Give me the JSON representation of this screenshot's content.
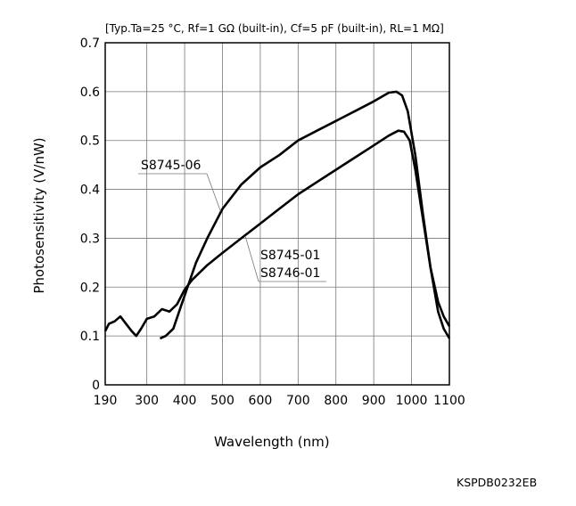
{
  "conditions_text": "[Typ.Ta=25 °C, Rf=1 GΩ (built-in), Cf=5 pF (built-in), RL=1 MΩ]",
  "document_code": "KSPDB0232EB",
  "chart_data": {
    "type": "line",
    "title": "",
    "xlabel": "Wavelength (nm)",
    "ylabel": "Photosensitivity (V/nW)",
    "xlim": [
      190,
      1100
    ],
    "ylim": [
      0,
      0.7
    ],
    "x_ticks": [
      190,
      300,
      400,
      500,
      600,
      700,
      800,
      900,
      1000,
      1100
    ],
    "y_ticks": [
      0,
      0.1,
      0.2,
      0.3,
      0.4,
      0.5,
      0.6,
      0.7
    ],
    "grid": true,
    "series": [
      {
        "name": "S8745-06",
        "label_lines": [
          "S8745-06"
        ],
        "points": [
          [
            335,
            0.095
          ],
          [
            350,
            0.1
          ],
          [
            370,
            0.115
          ],
          [
            390,
            0.16
          ],
          [
            410,
            0.205
          ],
          [
            430,
            0.25
          ],
          [
            460,
            0.3
          ],
          [
            500,
            0.36
          ],
          [
            550,
            0.41
          ],
          [
            600,
            0.445
          ],
          [
            650,
            0.47
          ],
          [
            700,
            0.5
          ],
          [
            750,
            0.52
          ],
          [
            800,
            0.54
          ],
          [
            850,
            0.56
          ],
          [
            900,
            0.58
          ],
          [
            940,
            0.598
          ],
          [
            960,
            0.6
          ],
          [
            975,
            0.592
          ],
          [
            990,
            0.56
          ],
          [
            1010,
            0.47
          ],
          [
            1030,
            0.35
          ],
          [
            1050,
            0.24
          ],
          [
            1070,
            0.15
          ],
          [
            1085,
            0.115
          ],
          [
            1100,
            0.095
          ]
        ]
      },
      {
        "name": "S8745-01 S8746-01",
        "label_lines": [
          "S8745-01",
          "S8746-01"
        ],
        "points": [
          [
            190,
            0.11
          ],
          [
            200,
            0.125
          ],
          [
            215,
            0.13
          ],
          [
            230,
            0.14
          ],
          [
            245,
            0.125
          ],
          [
            260,
            0.11
          ],
          [
            272,
            0.1
          ],
          [
            285,
            0.115
          ],
          [
            300,
            0.135
          ],
          [
            320,
            0.14
          ],
          [
            340,
            0.155
          ],
          [
            360,
            0.15
          ],
          [
            380,
            0.165
          ],
          [
            400,
            0.195
          ],
          [
            420,
            0.215
          ],
          [
            460,
            0.245
          ],
          [
            500,
            0.27
          ],
          [
            550,
            0.3
          ],
          [
            600,
            0.33
          ],
          [
            650,
            0.36
          ],
          [
            700,
            0.39
          ],
          [
            750,
            0.415
          ],
          [
            800,
            0.44
          ],
          [
            850,
            0.465
          ],
          [
            900,
            0.49
          ],
          [
            940,
            0.51
          ],
          [
            965,
            0.52
          ],
          [
            980,
            0.518
          ],
          [
            995,
            0.5
          ],
          [
            1010,
            0.44
          ],
          [
            1030,
            0.34
          ],
          [
            1050,
            0.24
          ],
          [
            1070,
            0.17
          ],
          [
            1085,
            0.14
          ],
          [
            1100,
            0.12
          ]
        ]
      }
    ]
  }
}
